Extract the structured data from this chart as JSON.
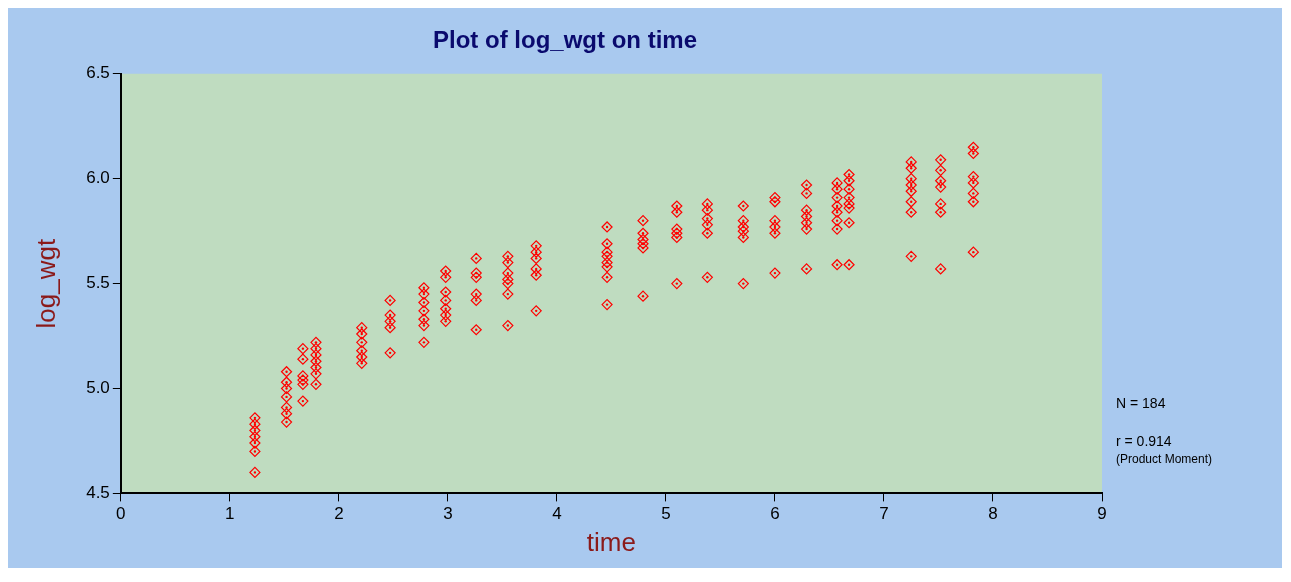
{
  "chart_data": {
    "type": "scatter",
    "title": "Plot of log_wgt on time",
    "xlabel": "time",
    "ylabel": "log_wgt",
    "marker": "diamond",
    "grid": false,
    "legend": false,
    "xlim": [
      0,
      9
    ],
    "xticks": [
      0,
      1,
      2,
      3,
      4,
      5,
      6,
      7,
      8,
      9
    ],
    "ylim": [
      4.5,
      6.5
    ],
    "yticks": [
      4.5,
      {
        "value": 5,
        "label": "5.0"
      },
      5.5,
      {
        "value": 6,
        "label": "6.0"
      },
      6.5
    ],
    "annotations": [
      "N = 184",
      "r = 0.914",
      "(Product Moment)"
    ],
    "series": [
      {
        "color": "#ff0000",
        "x": [
          1.23,
          1.23,
          1.23,
          1.23,
          1.23,
          1.23,
          1.23,
          1.52,
          1.52,
          1.52,
          1.52,
          1.52,
          1.52,
          1.52,
          1.67,
          1.67,
          1.67,
          1.67,
          1.67,
          1.67,
          1.79,
          1.79,
          1.79,
          1.79,
          1.79,
          1.79,
          1.79,
          2.21,
          2.21,
          2.21,
          2.21,
          2.21,
          2.21,
          2.47,
          2.47,
          2.47,
          2.47,
          2.47,
          2.78,
          2.78,
          2.78,
          2.78,
          2.78,
          2.78,
          2.78,
          2.98,
          2.98,
          2.98,
          2.98,
          2.98,
          2.98,
          2.98,
          3.26,
          3.26,
          3.26,
          3.26,
          3.26,
          3.26,
          3.55,
          3.55,
          3.55,
          3.55,
          3.55,
          3.55,
          3.55,
          3.81,
          3.81,
          3.81,
          3.81,
          3.81,
          3.81,
          4.46,
          4.46,
          4.46,
          4.46,
          4.46,
          4.46,
          4.46,
          4.46,
          4.79,
          4.79,
          4.79,
          4.79,
          4.79,
          4.79,
          5.1,
          5.1,
          5.1,
          5.1,
          5.1,
          5.1,
          5.38,
          5.38,
          5.38,
          5.38,
          5.38,
          5.38,
          5.71,
          5.71,
          5.71,
          5.71,
          5.71,
          5.71,
          6.0,
          6.0,
          6.0,
          6.0,
          6.0,
          6.0,
          6.29,
          6.29,
          6.29,
          6.29,
          6.29,
          6.29,
          6.29,
          6.57,
          6.57,
          6.57,
          6.57,
          6.57,
          6.57,
          6.57,
          6.57,
          6.68,
          6.68,
          6.68,
          6.68,
          6.68,
          6.68,
          6.68,
          6.68,
          7.25,
          7.25,
          7.25,
          7.25,
          7.25,
          7.25,
          7.25,
          7.25,
          7.52,
          7.52,
          7.52,
          7.52,
          7.52,
          7.52,
          7.52,
          7.82,
          7.82,
          7.82,
          7.82,
          7.82,
          7.82,
          7.82
        ],
        "values": [
          4.86,
          4.83,
          4.8,
          4.77,
          4.74,
          4.7,
          4.6,
          5.08,
          5.03,
          5.0,
          4.96,
          4.91,
          4.88,
          4.84,
          5.19,
          5.14,
          5.06,
          5.04,
          5.02,
          4.94,
          5.22,
          5.19,
          5.16,
          5.13,
          5.1,
          5.07,
          5.02,
          5.29,
          5.26,
          5.22,
          5.18,
          5.15,
          5.12,
          5.42,
          5.35,
          5.32,
          5.29,
          5.17,
          5.48,
          5.45,
          5.41,
          5.37,
          5.33,
          5.3,
          5.22,
          5.56,
          5.53,
          5.46,
          5.42,
          5.38,
          5.35,
          5.32,
          5.62,
          5.55,
          5.53,
          5.45,
          5.42,
          5.28,
          5.63,
          5.6,
          5.55,
          5.52,
          5.5,
          5.45,
          5.3,
          5.68,
          5.65,
          5.62,
          5.57,
          5.54,
          5.37,
          5.77,
          5.69,
          5.65,
          5.63,
          5.6,
          5.58,
          5.53,
          5.4,
          5.8,
          5.74,
          5.71,
          5.69,
          5.67,
          5.44,
          5.87,
          5.84,
          5.76,
          5.74,
          5.72,
          5.5,
          5.88,
          5.85,
          5.81,
          5.78,
          5.74,
          5.53,
          5.87,
          5.8,
          5.77,
          5.75,
          5.72,
          5.5,
          5.91,
          5.89,
          5.8,
          5.77,
          5.74,
          5.55,
          5.97,
          5.93,
          5.85,
          5.82,
          5.79,
          5.76,
          5.57,
          5.98,
          5.95,
          5.91,
          5.87,
          5.84,
          5.8,
          5.76,
          5.59,
          6.02,
          5.99,
          5.95,
          5.91,
          5.88,
          5.86,
          5.79,
          5.59,
          6.08,
          6.05,
          6.0,
          5.97,
          5.94,
          5.89,
          5.84,
          5.63,
          6.09,
          6.04,
          5.99,
          5.96,
          5.88,
          5.84,
          5.57,
          6.15,
          6.12,
          6.01,
          5.98,
          5.93,
          5.89,
          5.65
        ]
      }
    ]
  }
}
